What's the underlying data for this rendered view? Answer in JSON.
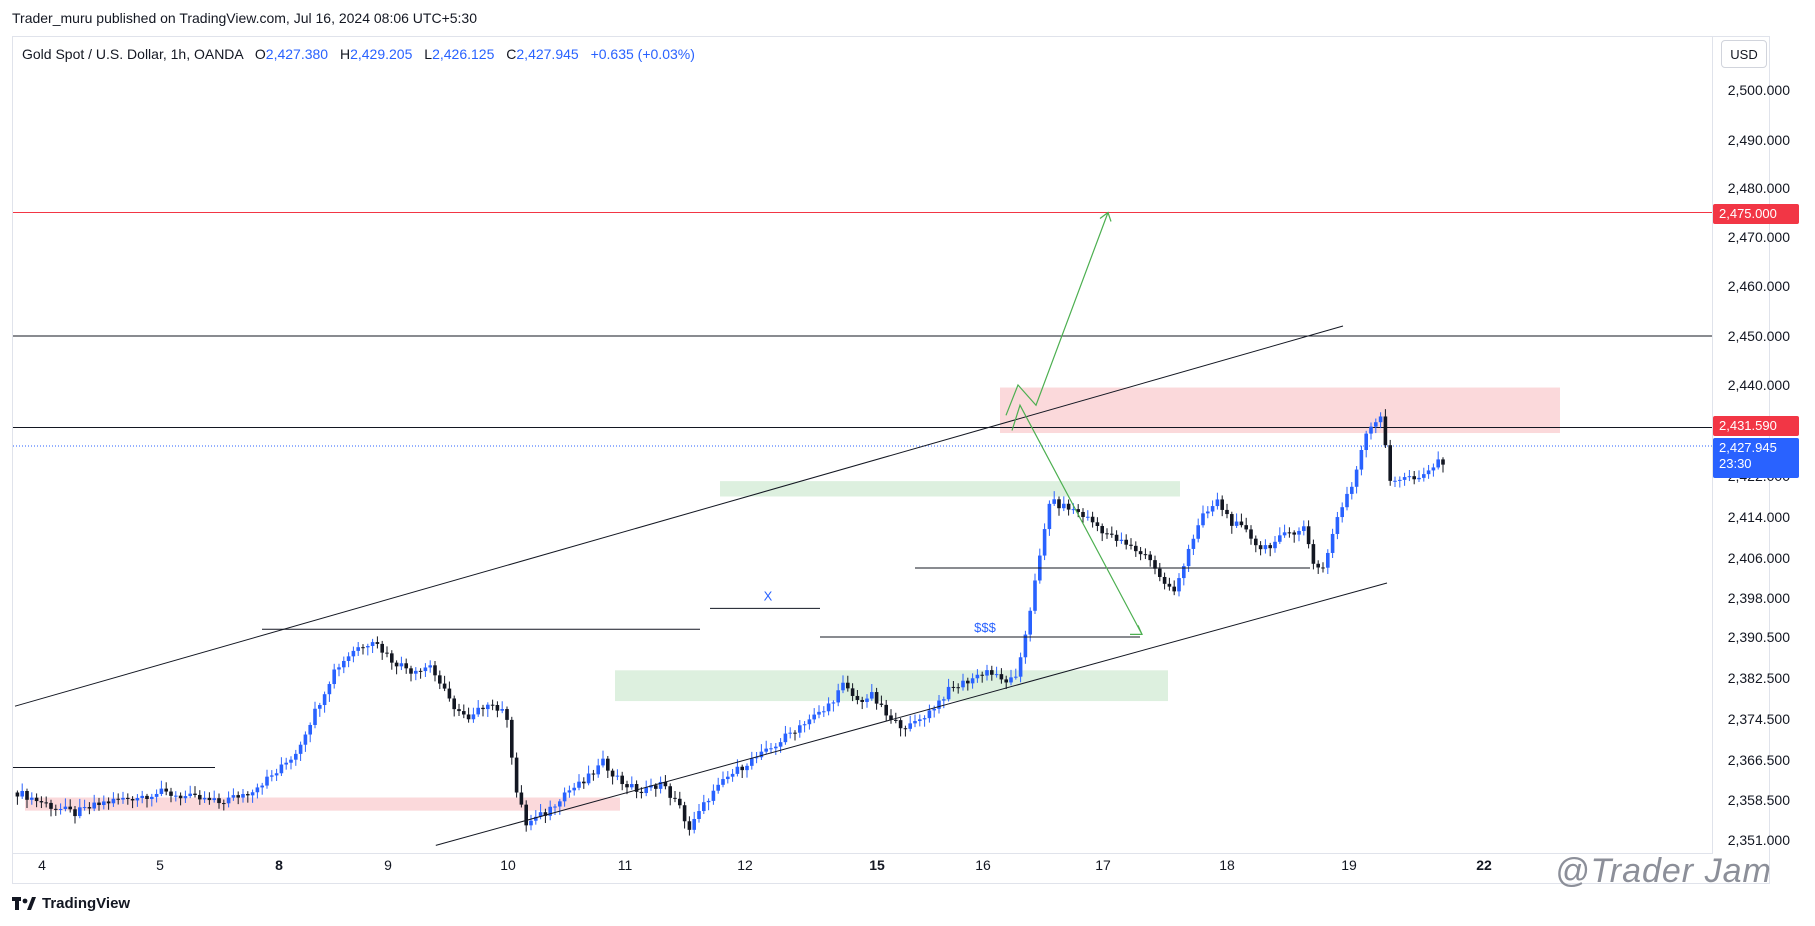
{
  "attribution": "Trader_muru published on TradingView.com, Jul 16, 2024 08:06 UTC+5:30",
  "legend": {
    "symbol": "Gold Spot / U.S. Dollar, 1h, OANDA",
    "open_label": "O",
    "open": "2,427.380",
    "high_label": "H",
    "high": "2,429.205",
    "low_label": "L",
    "low": "2,426.125",
    "close_label": "C",
    "close": "2,427.945",
    "change": "+0.635 (+0.03%)"
  },
  "currency": "USD",
  "price_tags": {
    "target": "2,475.000",
    "level": "2,431.590",
    "last": "2,427.945",
    "countdown": "23:30"
  },
  "colors": {
    "up": "#2962ff",
    "down": "#131722",
    "target_line": "#f23645",
    "supply_zone": "#fbd5d7",
    "demand_zone": "#d9eedb",
    "arrow": "#4caf50",
    "grid_text": "#131722"
  },
  "annotations": {
    "x_mark": "X",
    "liquidity": "$$$"
  },
  "brand": "TradingView",
  "watermark": "@Trader Jam",
  "chart_data": {
    "type": "candlestick",
    "title": "Gold Spot / U.S. Dollar, 1h, OANDA",
    "xlabel": "",
    "ylabel": "",
    "ylim": [
      2346,
      2505
    ],
    "y_ticks": [
      "2,500.000",
      "2,490.000",
      "2,480.000",
      "2,470.000",
      "2,460.000",
      "2,450.000",
      "2,440.000",
      "2,422.000",
      "2,414.000",
      "2,406.000",
      "2,398.000",
      "2,390.500",
      "2,382.500",
      "2,374.500",
      "2,366.500",
      "2,358.500",
      "2,351.000"
    ],
    "x_ticks": [
      "4",
      "5",
      "8",
      "9",
      "10",
      "11",
      "12",
      "15",
      "16",
      "17",
      "18",
      "19",
      "22"
    ],
    "x_ticks_bold": [
      "8",
      "15",
      "22"
    ],
    "horizontal_levels": [
      2475.0,
      2450.0,
      2431.59
    ],
    "close_path": [
      [
        0,
        2360
      ],
      [
        8,
        2357
      ],
      [
        12,
        2356
      ],
      [
        18,
        2358
      ],
      [
        24,
        2359
      ],
      [
        30,
        2360
      ],
      [
        36,
        2359
      ],
      [
        42,
        2358
      ],
      [
        48,
        2360
      ],
      [
        54,
        2364
      ],
      [
        58,
        2368
      ],
      [
        62,
        2376
      ],
      [
        66,
        2384
      ],
      [
        70,
        2388
      ],
      [
        74,
        2390
      ],
      [
        78,
        2386
      ],
      [
        82,
        2384
      ],
      [
        86,
        2385
      ],
      [
        90,
        2378
      ],
      [
        94,
        2374
      ],
      [
        98,
        2378
      ],
      [
        102,
        2375
      ],
      [
        104,
        2360
      ],
      [
        106,
        2354
      ],
      [
        110,
        2356
      ],
      [
        114,
        2360
      ],
      [
        118,
        2362
      ],
      [
        122,
        2366
      ],
      [
        126,
        2362
      ],
      [
        130,
        2360
      ],
      [
        134,
        2362
      ],
      [
        138,
        2357
      ],
      [
        140,
        2353
      ],
      [
        144,
        2359
      ],
      [
        148,
        2363
      ],
      [
        152,
        2366
      ],
      [
        156,
        2368
      ],
      [
        160,
        2371
      ],
      [
        164,
        2374
      ],
      [
        168,
        2376
      ],
      [
        172,
        2381
      ],
      [
        175,
        2378
      ],
      [
        178,
        2379
      ],
      [
        182,
        2374
      ],
      [
        186,
        2373
      ],
      [
        190,
        2376
      ],
      [
        194,
        2380
      ],
      [
        198,
        2382
      ],
      [
        202,
        2384
      ],
      [
        205,
        2382
      ],
      [
        208,
        2382
      ],
      [
        211,
        2396
      ],
      [
        213,
        2406
      ],
      [
        215,
        2417
      ],
      [
        218,
        2416
      ],
      [
        221,
        2415
      ],
      [
        224,
        2413
      ],
      [
        228,
        2410
      ],
      [
        232,
        2408
      ],
      [
        236,
        2406
      ],
      [
        238,
        2402
      ],
      [
        241,
        2399
      ],
      [
        244,
        2408
      ],
      [
        247,
        2414
      ],
      [
        250,
        2417
      ],
      [
        253,
        2413
      ],
      [
        256,
        2411
      ],
      [
        259,
        2408
      ],
      [
        262,
        2409
      ],
      [
        265,
        2411
      ],
      [
        268,
        2412
      ],
      [
        270,
        2405
      ],
      [
        272,
        2404
      ],
      [
        275,
        2414
      ],
      [
        278,
        2420
      ],
      [
        281,
        2431
      ],
      [
        284,
        2434
      ],
      [
        286,
        2421
      ],
      [
        289,
        2422
      ],
      [
        292,
        2421
      ],
      [
        295,
        2424
      ],
      [
        297,
        2425
      ]
    ],
    "candles_per_day": 23,
    "zones": [
      {
        "kind": "supply",
        "from": 2430.5,
        "to": 2439.5
      },
      {
        "kind": "demand",
        "from": 2418.0,
        "to": 2421.0
      },
      {
        "kind": "demand",
        "from": 2378.0,
        "to": 2384.0
      },
      {
        "kind": "supply",
        "from": 2356.5,
        "to": 2359.0
      }
    ],
    "channel": {
      "upper": [
        [
          0,
          2377
        ],
        [
          185,
          2452
        ]
      ],
      "lower": [
        [
          71,
          2350
        ],
        [
          190,
          2401
        ]
      ]
    },
    "projections": {
      "bullish": [
        [
          285,
          2434
        ],
        [
          288,
          2440
        ],
        [
          290,
          2438
        ],
        [
          300,
          2475
        ]
      ],
      "bearish": [
        [
          288,
          2434
        ],
        [
          302,
          2391
        ]
      ]
    }
  }
}
